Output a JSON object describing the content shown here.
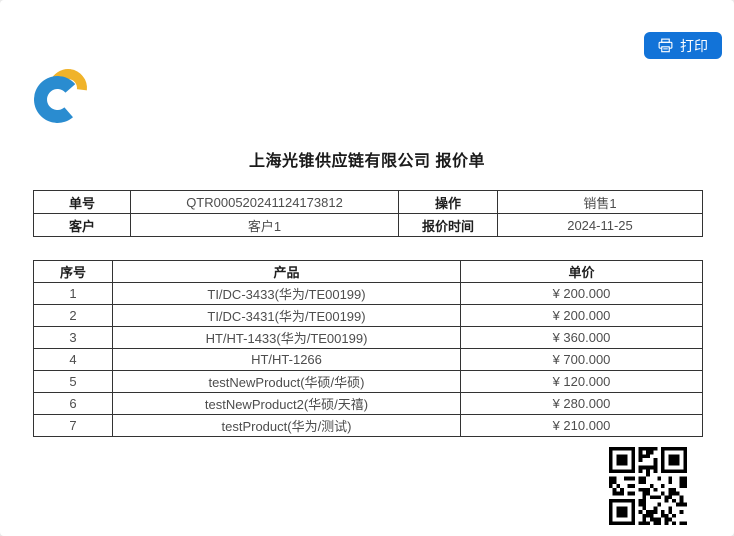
{
  "header": {
    "print_button": {
      "label": "打印",
      "icon": "printer-icon"
    }
  },
  "title": "上海光锥供应链有限公司 报价单",
  "info_table": {
    "row1": {
      "label1": "单号",
      "value1": "QTR000520241124173812",
      "label2": "操作",
      "value2": "销售1"
    },
    "row2": {
      "label1": "客户",
      "value1": "客户1",
      "label2": "报价时间",
      "value2": "2024-11-25"
    }
  },
  "product_table": {
    "headers": [
      "序号",
      "产品",
      "单价"
    ],
    "rows": [
      {
        "no": "1",
        "product": "TI/DC-3433(华为/TE00199)",
        "price": "¥ 200.000"
      },
      {
        "no": "2",
        "product": "TI/DC-3431(华为/TE00199)",
        "price": "¥ 200.000"
      },
      {
        "no": "3",
        "product": "HT/HT-1433(华为/TE00199)",
        "price": "¥ 360.000"
      },
      {
        "no": "4",
        "product": "HT/HT-1266",
        "price": "¥ 700.000"
      },
      {
        "no": "5",
        "product": "testNewProduct(华硕/华硕)",
        "price": "¥ 120.000"
      },
      {
        "no": "6",
        "product": "testNewProduct2(华硕/天禧)",
        "price": "¥ 280.000"
      },
      {
        "no": "7",
        "product": "testProduct(华为/测试)",
        "price": "¥ 210.000"
      }
    ]
  },
  "colors": {
    "primary_blue": "#1273d8",
    "logo_blue": "#2a8cd0",
    "logo_yellow": "#f0b32a"
  }
}
